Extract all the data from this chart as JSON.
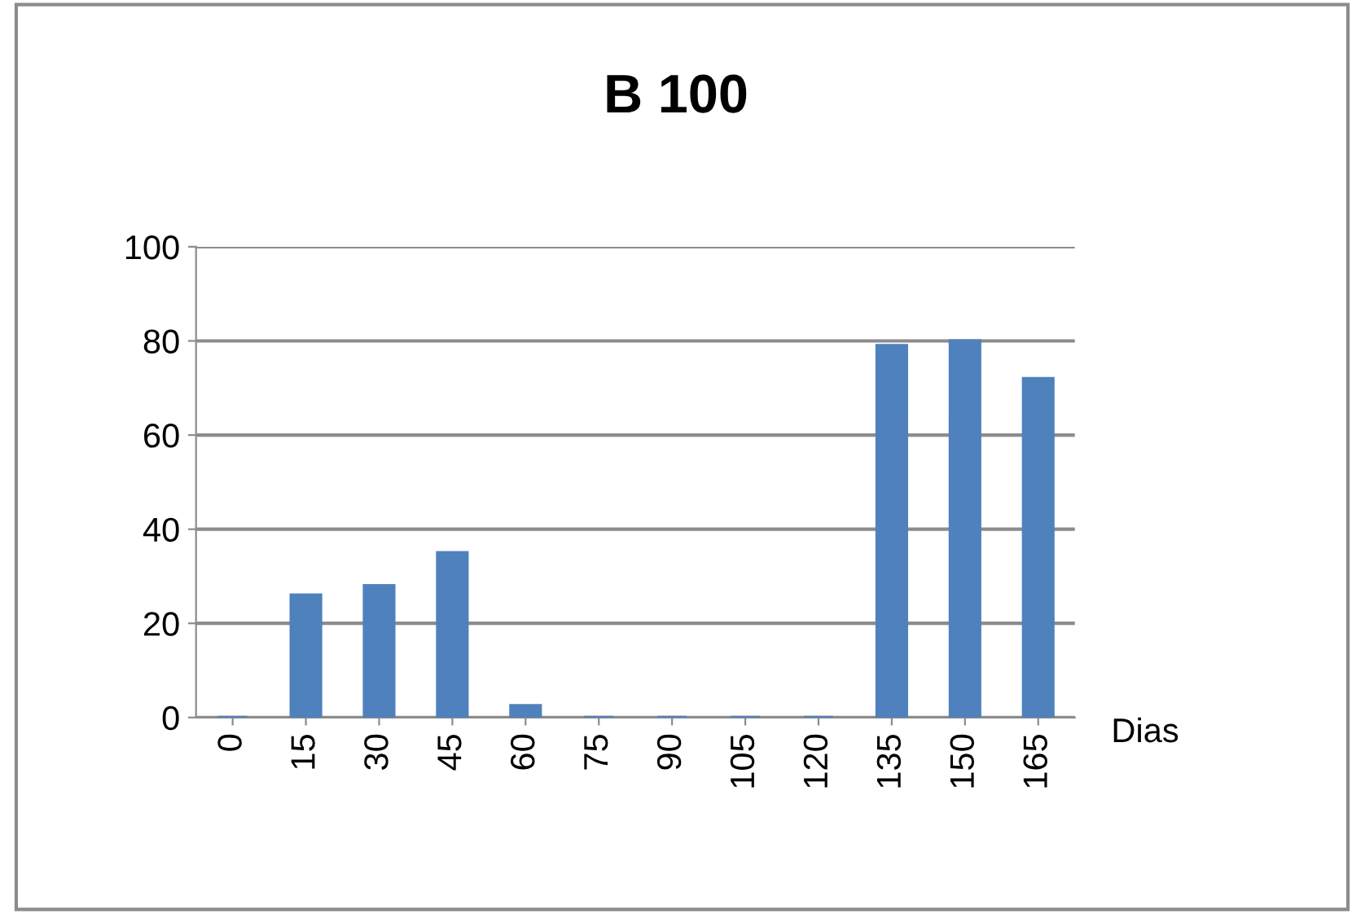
{
  "chart_data": {
    "type": "bar",
    "title": "B 100",
    "xlabel": "Dias",
    "categories": [
      "0",
      "15",
      "30",
      "45",
      "60",
      "75",
      "90",
      "105",
      "120",
      "135",
      "150",
      "165"
    ],
    "values": [
      0,
      26,
      28,
      35,
      2.5,
      0,
      0,
      0,
      0,
      79,
      80,
      72
    ],
    "color": "#4f81bd",
    "ylim": [
      0,
      100
    ],
    "yticks": [
      0,
      20,
      40,
      60,
      80,
      100
    ],
    "grid": "y"
  }
}
